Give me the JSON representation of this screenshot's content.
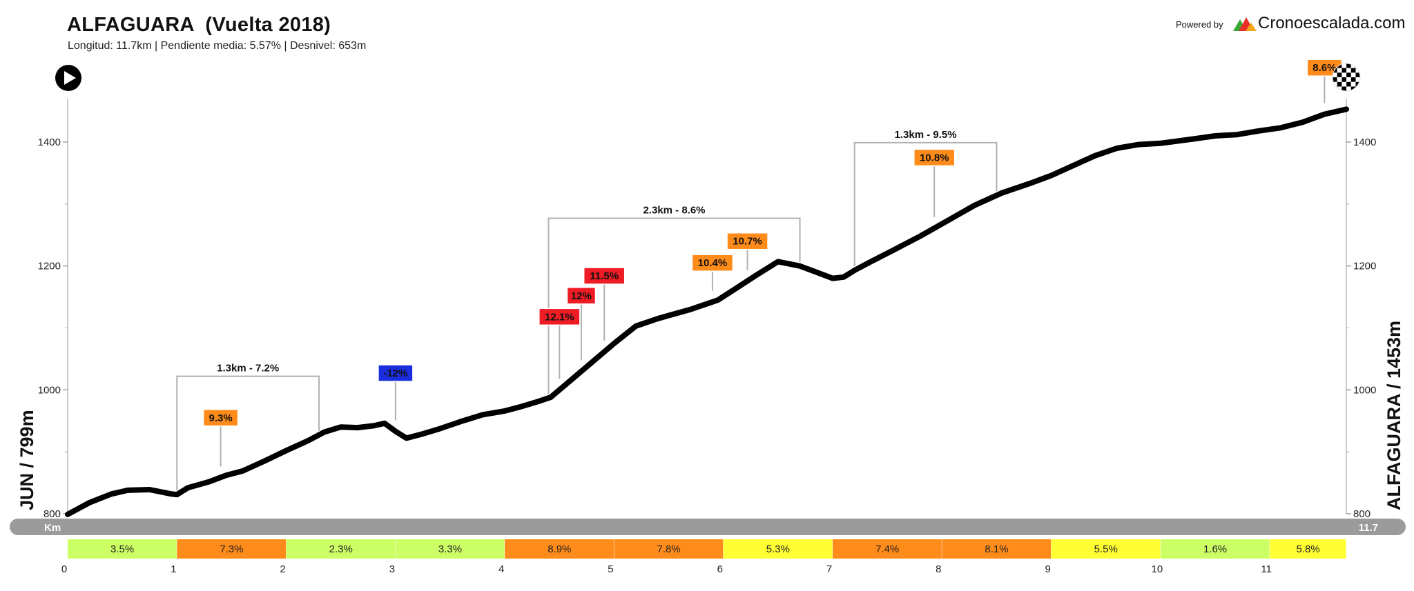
{
  "header": {
    "title": "ALFAGUARA  (Vuelta 2018)",
    "subtitle": "Longitud: 11.7km | Pendiente media: 5.57% | Desnivel: 653m",
    "powered_by": "Powered by",
    "brand": "Cronoescalada.com",
    "brand_colors": [
      "#e8312a",
      "#f2a71b",
      "#3aaa35"
    ]
  },
  "icons": {
    "start": "play-icon",
    "finish": "checkered-flag-icon"
  },
  "chart_data": {
    "type": "line",
    "title": "ALFAGUARA  (Vuelta 2018)",
    "subtitle": "Longitud: 11.7km | Pendiente media: 5.57% | Desnivel: 653m",
    "x_unit": "Km",
    "x_end_label": "11.7",
    "xlim": [
      0,
      11.7
    ],
    "ylim": [
      800,
      1460
    ],
    "y_ticks": [
      800,
      1000,
      1200,
      1400
    ],
    "x_ticks": [
      0,
      1,
      2,
      3,
      4,
      5,
      6,
      7,
      8,
      9,
      10,
      11
    ],
    "start_label": "JUN / 799m",
    "end_label": "ALFAGUARA / 1453m",
    "line_color": "#000000",
    "profile": {
      "x": [
        0,
        0.2,
        0.4,
        0.55,
        0.75,
        0.95,
        1.0,
        1.1,
        1.3,
        1.45,
        1.6,
        1.8,
        2.0,
        2.2,
        2.35,
        2.5,
        2.65,
        2.8,
        2.9,
        3.0,
        3.1,
        3.25,
        3.4,
        3.6,
        3.8,
        4.0,
        4.15,
        4.3,
        4.42,
        4.6,
        4.8,
        5.0,
        5.2,
        5.4,
        5.5,
        5.7,
        5.95,
        6.1,
        6.3,
        6.5,
        6.7,
        6.85,
        7.0,
        7.1,
        7.2,
        7.35,
        7.55,
        7.8,
        8.0,
        8.3,
        8.55,
        8.8,
        9.0,
        9.2,
        9.4,
        9.6,
        9.8,
        10.0,
        10.3,
        10.5,
        10.7,
        10.9,
        11.1,
        11.3,
        11.5,
        11.7
      ],
      "y": [
        799,
        818,
        832,
        838,
        839,
        832,
        831,
        842,
        852,
        862,
        869,
        885,
        902,
        918,
        932,
        940,
        939,
        942,
        946,
        933,
        922,
        929,
        937,
        949,
        960,
        966,
        973,
        981,
        988,
        1015,
        1045,
        1075,
        1103,
        1115,
        1120,
        1130,
        1145,
        1162,
        1185,
        1207,
        1200,
        1190,
        1180,
        1182,
        1193,
        1207,
        1225,
        1248,
        1268,
        1298,
        1318,
        1333,
        1346,
        1362,
        1378,
        1390,
        1396,
        1398,
        1405,
        1410,
        1412,
        1418,
        1423,
        1432,
        1445,
        1453
      ]
    },
    "segments": [
      {
        "km": [
          0,
          1
        ],
        "grade": "3.5%",
        "color": "#ccff66"
      },
      {
        "km": [
          1,
          2
        ],
        "grade": "7.3%",
        "color": "#ff8c1a"
      },
      {
        "km": [
          2,
          3
        ],
        "grade": "2.3%",
        "color": "#ccff66"
      },
      {
        "km": [
          3,
          4
        ],
        "grade": "3.3%",
        "color": "#ccff66"
      },
      {
        "km": [
          4,
          5
        ],
        "grade": "8.9%",
        "color": "#ff8c1a"
      },
      {
        "km": [
          5,
          6
        ],
        "grade": "7.8%",
        "color": "#ff8c1a"
      },
      {
        "km": [
          6,
          7
        ],
        "grade": "5.3%",
        "color": "#ffff33"
      },
      {
        "km": [
          7,
          8
        ],
        "grade": "7.4%",
        "color": "#ff8c1a"
      },
      {
        "km": [
          8,
          9
        ],
        "grade": "8.1%",
        "color": "#ff8c1a"
      },
      {
        "km": [
          9,
          10
        ],
        "grade": "5.5%",
        "color": "#ffff33"
      },
      {
        "km": [
          10,
          11
        ],
        "grade": "1.6%",
        "color": "#ccff66"
      },
      {
        "km": [
          11,
          11.7
        ],
        "grade": "5.8%",
        "color": "#ffff33"
      }
    ],
    "brackets": [
      {
        "label": "1.3km - 7.2%",
        "km_start": 1.0,
        "km_end": 2.3,
        "top_elev": 1022
      },
      {
        "label": "2.3km - 8.6%",
        "km_start": 4.4,
        "km_end": 6.7,
        "top_elev": 1277
      },
      {
        "label": "1.3km - 9.5%",
        "km_start": 7.2,
        "km_end": 8.5,
        "top_elev": 1399
      }
    ],
    "peak_grades": [
      {
        "label": "9.3%",
        "km": 1.4,
        "label_elev": 955,
        "color": "#ff8c1a"
      },
      {
        "label": "-12%",
        "km": 3.0,
        "label_elev": 1027,
        "color": "#1a2ee0"
      },
      {
        "label": "12.1%",
        "km": 4.5,
        "label_elev": 1118,
        "color": "#ee1c25"
      },
      {
        "label": "12%",
        "km": 4.7,
        "label_elev": 1152,
        "color": "#ee1c25"
      },
      {
        "label": "11.5%",
        "km": 4.91,
        "label_elev": 1184,
        "color": "#ee1c25"
      },
      {
        "label": "10.4%",
        "km": 5.9,
        "label_elev": 1205,
        "color": "#ff8c1a"
      },
      {
        "label": "10.7%",
        "km": 6.22,
        "label_elev": 1240,
        "color": "#ff8c1a"
      },
      {
        "label": "10.8%",
        "km": 7.93,
        "label_elev": 1375,
        "color": "#ff8c1a"
      },
      {
        "label": "8.6%",
        "km": 11.5,
        "label_elev": 1520,
        "color": "#ff8c1a"
      }
    ]
  }
}
